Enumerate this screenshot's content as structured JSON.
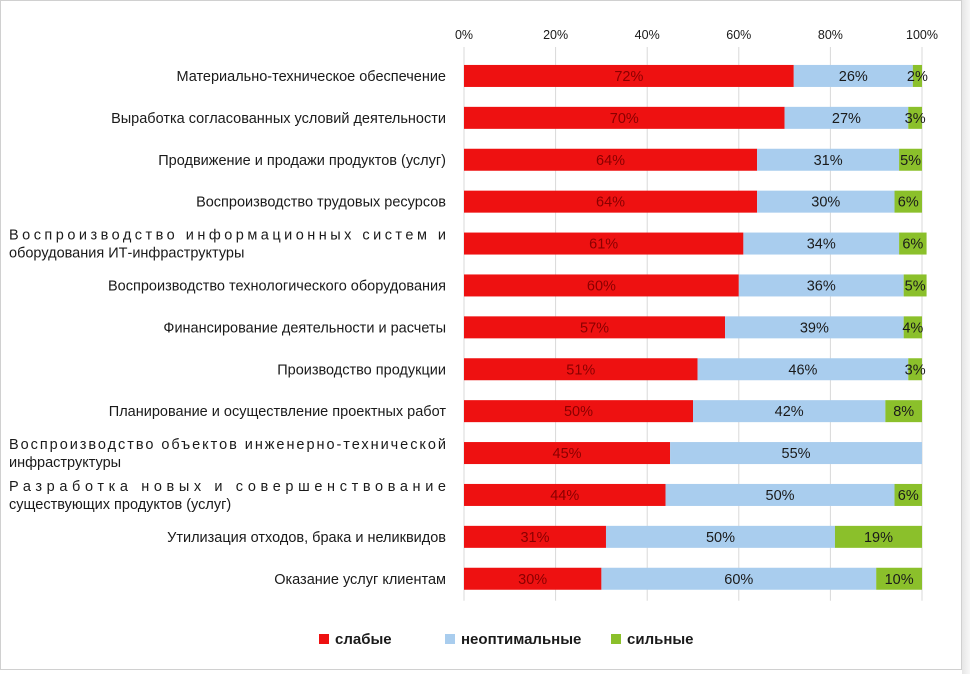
{
  "chart_data": {
    "type": "bar",
    "orientation": "horizontal",
    "stacked": "percent",
    "categories": [
      "Материально-техническое обеспечение",
      "Выработка согласованных условий деятельности",
      "Продвижение и продажи продуктов (услуг)",
      "Воспроизводство трудовых ресурсов",
      "Воспроизводство информационных систем и оборудования ИТ-инфраструктуры",
      "Воспроизводство технологического оборудования",
      "Финансирование деятельности и расчеты",
      "Производство продукции",
      "Планирование и осуществление проектных работ",
      "Воспроизводство объектов инженерно-технической инфраструктуры",
      "Разработка новых и совершенствование существующих продуктов (услуг)",
      "Утилизация отходов, брака и неликвидов",
      "Оказание услуг клиентам"
    ],
    "category_lines": [
      [
        "Материально-техническое обеспечение"
      ],
      [
        "Выработка согласованных условий деятельности"
      ],
      [
        "Продвижение и продажи продуктов (услуг)"
      ],
      [
        "Воспроизводство трудовых ресурсов"
      ],
      [
        "Воспроизводство информационных систем и",
        "оборудования ИТ-инфраструктуры"
      ],
      [
        "Воспроизводство технологического оборудования"
      ],
      [
        "Финансирование деятельности и расчеты"
      ],
      [
        "Производство продукции"
      ],
      [
        "Планирование и осуществление проектных работ"
      ],
      [
        "Воспроизводство объектов инженерно-технической",
        "инфраструктуры"
      ],
      [
        "Разработка новых и совершенствование",
        "существующих продуктов (услуг)"
      ],
      [
        "Утилизация отходов, брака и неликвидов"
      ],
      [
        "Оказание услуг клиентам"
      ]
    ],
    "series": [
      {
        "name": "слабые",
        "color": "#ee1111",
        "values": [
          72,
          70,
          64,
          64,
          61,
          60,
          57,
          51,
          50,
          45,
          44,
          31,
          30
        ]
      },
      {
        "name": "неоптимальные",
        "color": "#a9cdee",
        "values": [
          26,
          27,
          31,
          30,
          34,
          36,
          39,
          46,
          42,
          55,
          50,
          50,
          60
        ]
      },
      {
        "name": "сильные",
        "color": "#8bc02b",
        "values": [
          2,
          3,
          5,
          6,
          6,
          5,
          4,
          3,
          8,
          0,
          6,
          19,
          10
        ]
      }
    ],
    "data_labels": [
      [
        "72%",
        "26%",
        "2%"
      ],
      [
        "70%",
        "27%",
        "3%"
      ],
      [
        "64%",
        "31%",
        "5%"
      ],
      [
        "64%",
        "30%",
        "6%"
      ],
      [
        "61%",
        "34%",
        "6%"
      ],
      [
        "60%",
        "36%",
        "5%"
      ],
      [
        "57%",
        "39%",
        "4%"
      ],
      [
        "51%",
        "46%",
        "3%"
      ],
      [
        "50%",
        "42%",
        "8%"
      ],
      [
        "45%",
        "55%",
        ""
      ],
      [
        "44%",
        "50%",
        "6%"
      ],
      [
        "31%",
        "50%",
        "19%"
      ],
      [
        "30%",
        "60%",
        "10%"
      ]
    ],
    "xaxis": {
      "ticks": [
        "0%",
        "20%",
        "40%",
        "60%",
        "80%",
        "100%"
      ],
      "tick_values": [
        0,
        20,
        40,
        60,
        80,
        100
      ],
      "range": [
        0,
        100
      ],
      "position": "top"
    },
    "gridlines": "vertical, light gray",
    "legend": {
      "position": "bottom-center",
      "items": [
        "слабые",
        "неоптимальные",
        "сильные"
      ]
    }
  }
}
